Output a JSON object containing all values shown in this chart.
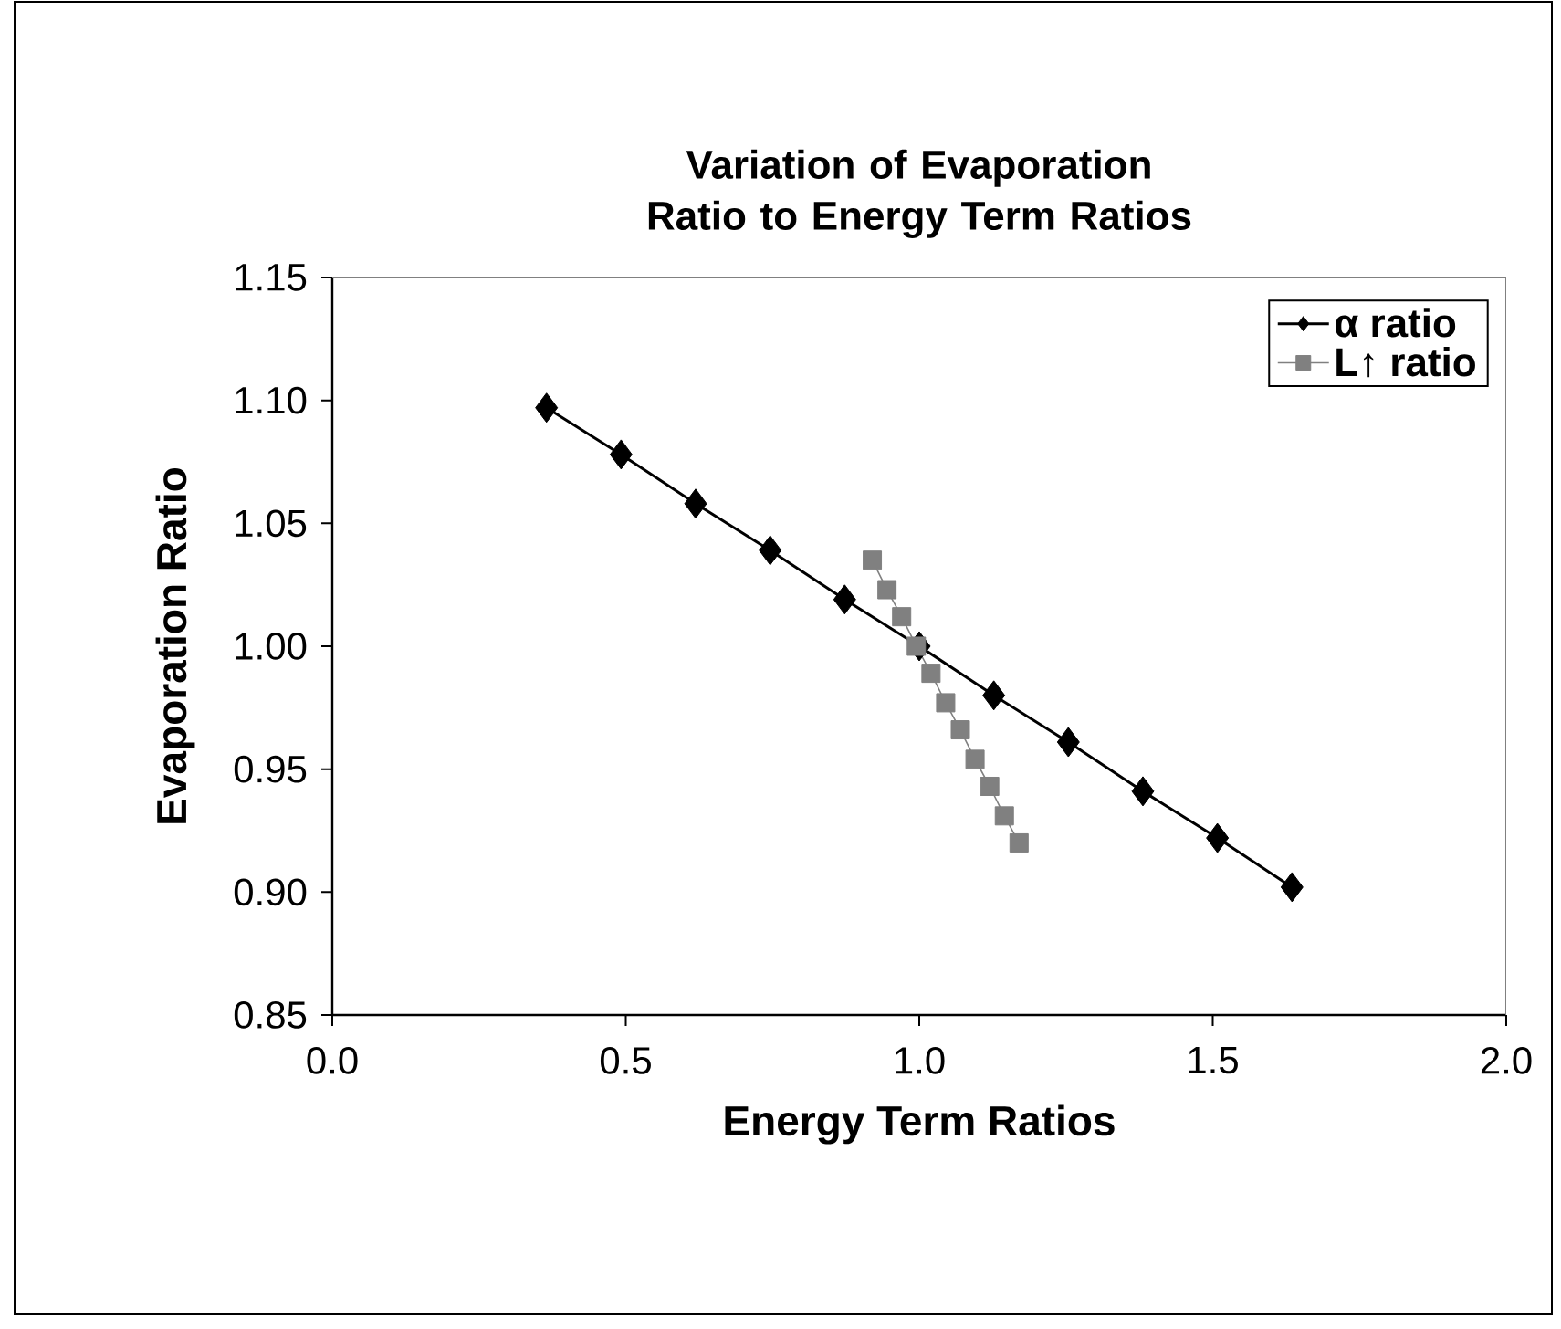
{
  "chart_data": {
    "type": "line",
    "title": "Variation of Evaporation Ratio to Energy Term Ratios",
    "xlabel": "Energy Term Ratios",
    "ylabel": "Evaporation Ratio",
    "xlim": [
      0,
      2
    ],
    "ylim": [
      0.85,
      1.15
    ],
    "xticks": [
      {
        "value": 0,
        "label": "0.0"
      },
      {
        "value": 0.5,
        "label": "0.5"
      },
      {
        "value": 1,
        "label": "1.0"
      },
      {
        "value": 1.5,
        "label": "1.5"
      },
      {
        "value": 2,
        "label": "2.0"
      }
    ],
    "yticks": [
      {
        "value": 0.85,
        "label": "0.85"
      },
      {
        "value": 0.9,
        "label": "0.90"
      },
      {
        "value": 0.95,
        "label": "0.95"
      },
      {
        "value": 1.0,
        "label": "1.00"
      },
      {
        "value": 1.05,
        "label": "1.05"
      },
      {
        "value": 1.1,
        "label": "1.10"
      },
      {
        "value": 1.15,
        "label": "1.15"
      }
    ],
    "legend": "top right",
    "series": [
      {
        "name": "α ratio",
        "color": "#000000",
        "marker": "diamond",
        "x": [
          0.365,
          0.492,
          0.619,
          0.746,
          0.873,
          1.0,
          1.127,
          1.254,
          1.381,
          1.508,
          1.635
        ],
        "values": [
          1.097,
          1.078,
          1.058,
          1.039,
          1.019,
          1.0,
          0.98,
          0.961,
          0.941,
          0.922,
          0.902
        ]
      },
      {
        "name": "L↑ ratio",
        "color": "#808080",
        "marker": "square",
        "x": [
          0.92,
          0.945,
          0.97,
          0.995,
          1.02,
          1.045,
          1.07,
          1.095,
          1.12,
          1.145,
          1.17
        ],
        "values": [
          1.035,
          1.023,
          1.012,
          1.0,
          0.989,
          0.977,
          0.966,
          0.954,
          0.943,
          0.931,
          0.92
        ]
      }
    ]
  }
}
